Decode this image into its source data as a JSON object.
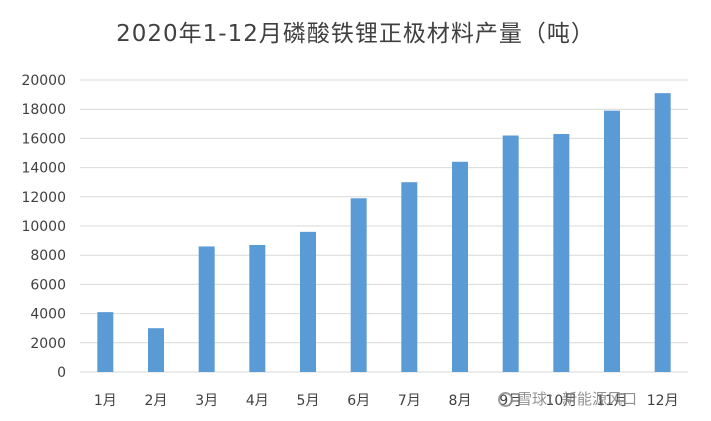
{
  "chart_data": {
    "type": "bar",
    "title": "2020年1-12月磷酸铁锂正极材料产量（吨）",
    "categories": [
      "1月",
      "2月",
      "3月",
      "4月",
      "5月",
      "6月",
      "7月",
      "8月",
      "9月",
      "10月",
      "11月",
      "12月"
    ],
    "values": [
      4100,
      3000,
      8600,
      8700,
      9600,
      11900,
      13000,
      14400,
      16200,
      16300,
      17900,
      19100
    ],
    "ylim": [
      0,
      20000
    ],
    "yticks": [
      0,
      2000,
      4000,
      6000,
      8000,
      10000,
      12000,
      14000,
      16000,
      18000,
      20000
    ],
    "grid": true,
    "bar_color": "#5b9bd5"
  },
  "watermark": "雪球：新能源风口"
}
